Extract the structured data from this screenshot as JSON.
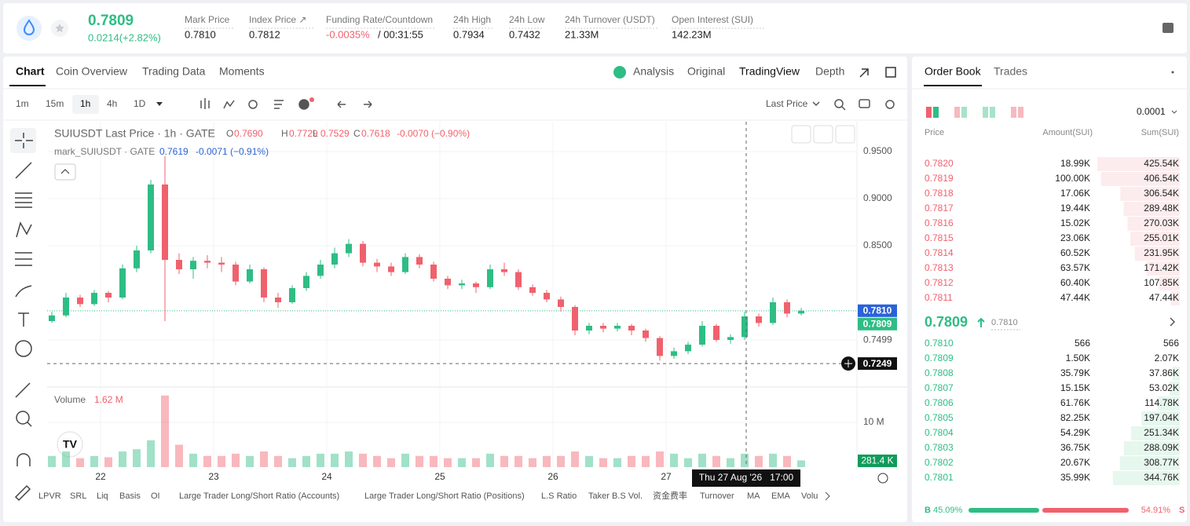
{
  "header": {
    "price": "0.7809",
    "change": "0.0214(+2.82%)",
    "stats": [
      {
        "label": "Mark Price",
        "value": "0.7810"
      },
      {
        "label": "Index Price ↗",
        "value": "0.7812"
      },
      {
        "label": "Funding Rate/Countdown",
        "value": "-0.0035%",
        "extra": "/ 00:31:55"
      },
      {
        "label": "24h High",
        "value": "0.7934"
      },
      {
        "label": "24h Low",
        "value": "0.7432"
      },
      {
        "label": "24h Turnover (USDT)",
        "value": "21.33M"
      },
      {
        "label": "Open Interest (SUI)",
        "value": "142.23M"
      }
    ]
  },
  "tabs": [
    "Chart",
    "Coin Overview",
    "Trading Data",
    "Moments"
  ],
  "views": [
    "Analysis",
    "Original",
    "TradingView",
    "Depth"
  ],
  "intervals": [
    "1m",
    "15m",
    "1h",
    "4h",
    "1D"
  ],
  "price_type": "Last Price",
  "chart": {
    "title": "SUIUSDT Last Price · 1h · GATE",
    "ohlc": [
      {
        "key": "O",
        "value": "0.7690"
      },
      {
        "key": "H",
        "value": "0.7729"
      },
      {
        "key": "L",
        "value": "0.7529"
      },
      {
        "key": "C",
        "value": "0.7618"
      }
    ],
    "change": "-0.0070 (−0.90%)",
    "mark_legend": {
      "name": "mark_SUIUSDT · GATE",
      "value": "0.7619",
      "change": "-0.0071 (−0.91%)"
    },
    "volume_legend": {
      "name": "Volume",
      "value": "1.62 M"
    },
    "ylim": [
      0.7008,
      0.9817
    ],
    "yticks": [
      {
        "value": 0.95,
        "label": "0.9500"
      },
      {
        "value": 0.9,
        "label": "0.9000"
      },
      {
        "value": 0.85,
        "label": "0.8500"
      },
      {
        "value": 0.7499,
        "label": "0.7499"
      }
    ],
    "price_tags": [
      {
        "value": 0.781,
        "label": "0.7810",
        "color": "#2b62d9"
      },
      {
        "value": 0.7809,
        "label": "0.7809",
        "color": "#2ebd85"
      },
      {
        "value": 0.7249,
        "label": "0.7249",
        "color": "#111111"
      }
    ],
    "up_color": "#2ebd85",
    "down_color": "#f0616d",
    "candles": [
      [
        0.77,
        0.78,
        0.768,
        0.776
      ],
      [
        0.776,
        0.8,
        0.774,
        0.795
      ],
      [
        0.795,
        0.798,
        0.785,
        0.788
      ],
      [
        0.788,
        0.803,
        0.786,
        0.8
      ],
      [
        0.8,
        0.802,
        0.79,
        0.795
      ],
      [
        0.795,
        0.83,
        0.793,
        0.826
      ],
      [
        0.826,
        0.85,
        0.822,
        0.845
      ],
      [
        0.845,
        0.92,
        0.842,
        0.915
      ],
      [
        0.915,
        0.945,
        0.77,
        0.835
      ],
      [
        0.835,
        0.842,
        0.82,
        0.825
      ],
      [
        0.825,
        0.838,
        0.815,
        0.834
      ],
      [
        0.834,
        0.84,
        0.826,
        0.832
      ],
      [
        0.832,
        0.838,
        0.822,
        0.83
      ],
      [
        0.83,
        0.833,
        0.808,
        0.812
      ],
      [
        0.812,
        0.83,
        0.81,
        0.825
      ],
      [
        0.825,
        0.827,
        0.79,
        0.795
      ],
      [
        0.795,
        0.8,
        0.784,
        0.79
      ],
      [
        0.79,
        0.808,
        0.788,
        0.805
      ],
      [
        0.805,
        0.822,
        0.802,
        0.818
      ],
      [
        0.818,
        0.835,
        0.815,
        0.83
      ],
      [
        0.83,
        0.848,
        0.826,
        0.842
      ],
      [
        0.842,
        0.857,
        0.838,
        0.852
      ],
      [
        0.852,
        0.855,
        0.828,
        0.832
      ],
      [
        0.832,
        0.836,
        0.822,
        0.828
      ],
      [
        0.828,
        0.832,
        0.818,
        0.822
      ],
      [
        0.822,
        0.842,
        0.82,
        0.838
      ],
      [
        0.838,
        0.841,
        0.826,
        0.83
      ],
      [
        0.83,
        0.833,
        0.812,
        0.815
      ],
      [
        0.815,
        0.818,
        0.804,
        0.808
      ],
      [
        0.808,
        0.814,
        0.804,
        0.81
      ],
      [
        0.81,
        0.812,
        0.8,
        0.806
      ],
      [
        0.806,
        0.83,
        0.804,
        0.825
      ],
      [
        0.825,
        0.832,
        0.818,
        0.822
      ],
      [
        0.822,
        0.825,
        0.803,
        0.806
      ],
      [
        0.806,
        0.809,
        0.797,
        0.8
      ],
      [
        0.8,
        0.803,
        0.79,
        0.793
      ],
      [
        0.793,
        0.796,
        0.78,
        0.785
      ],
      [
        0.785,
        0.787,
        0.755,
        0.76
      ],
      [
        0.76,
        0.768,
        0.756,
        0.765
      ],
      [
        0.765,
        0.768,
        0.758,
        0.762
      ],
      [
        0.762,
        0.768,
        0.759,
        0.765
      ],
      [
        0.765,
        0.767,
        0.755,
        0.76
      ],
      [
        0.76,
        0.762,
        0.748,
        0.752
      ],
      [
        0.752,
        0.754,
        0.728,
        0.733
      ],
      [
        0.733,
        0.742,
        0.73,
        0.738
      ],
      [
        0.738,
        0.748,
        0.735,
        0.745
      ],
      [
        0.745,
        0.77,
        0.743,
        0.765
      ],
      [
        0.765,
        0.767,
        0.748,
        0.75
      ],
      [
        0.75,
        0.756,
        0.746,
        0.753
      ],
      [
        0.753,
        0.78,
        0.75,
        0.775
      ],
      [
        0.775,
        0.778,
        0.764,
        0.768
      ],
      [
        0.768,
        0.795,
        0.766,
        0.79
      ],
      [
        0.79,
        0.793,
        0.774,
        0.778
      ],
      [
        0.778,
        0.784,
        0.776,
        0.781
      ]
    ],
    "volumes": [
      2.5,
      3.5,
      2,
      2.5,
      2.2,
      3.5,
      4,
      6,
      16,
      5,
      3,
      2.5,
      2.5,
      3,
      2.5,
      3.5,
      2.5,
      2,
      2.5,
      3,
      3,
      3.5,
      3,
      2.5,
      2,
      3,
      2.5,
      2.5,
      2,
      2,
      2,
      3,
      2.5,
      2.5,
      2,
      2.5,
      2.5,
      3.5,
      2.5,
      2,
      2,
      2.5,
      2.5,
      3.5,
      3,
      2,
      3,
      2.5,
      2,
      3,
      2.5,
      3,
      2.5,
      1.5
    ],
    "vlim": [
      0,
      16.67
    ],
    "vticks": [
      {
        "value": 10,
        "label": "10 M"
      }
    ],
    "volume_tag": {
      "value": 0.2814,
      "label": "281.4 K"
    },
    "x_labels": [
      "22",
      "23",
      "24",
      "25",
      "26",
      "27"
    ],
    "crosshair_label": "Thu 27 Aug '26   17:00",
    "indicators": [
      "LPVR",
      "SRL",
      "Liq",
      "Basis",
      "OI",
      "Large Trader Long/Short Ratio (Accounts)",
      "Large Trader Long/Short Ratio (Positions)",
      "L.S Ratio",
      "Taker B.S Vol.",
      "资金费率",
      "Turnover",
      "MA",
      "EMA",
      "Volu"
    ]
  },
  "order_book": {
    "tabs": [
      "Order Book",
      "Trades"
    ],
    "precision": "0.0001",
    "columns": [
      "Price",
      "Amount(SUI)",
      "Sum(SUI)"
    ],
    "asks": [
      [
        "0.7820",
        "18.99K",
        425.54,
        "425.54K"
      ],
      [
        "0.7819",
        "100.00K",
        406.54,
        "406.54K"
      ],
      [
        "0.7818",
        "17.06K",
        306.54,
        "306.54K"
      ],
      [
        "0.7817",
        "19.44K",
        289.48,
        "289.48K"
      ],
      [
        "0.7816",
        "15.02K",
        270.03,
        "270.03K"
      ],
      [
        "0.7815",
        "23.06K",
        255.01,
        "255.01K"
      ],
      [
        "0.7814",
        "60.52K",
        231.95,
        "231.95K"
      ],
      [
        "0.7813",
        "63.57K",
        171.42,
        "171.42K"
      ],
      [
        "0.7812",
        "60.40K",
        107.85,
        "107.85K"
      ],
      [
        "0.7811",
        "47.44K",
        47.44,
        "47.44K"
      ]
    ],
    "mid": {
      "price": "0.7809",
      "mark": "0.7810"
    },
    "bids": [
      [
        "0.7810",
        "566",
        0.566,
        "566"
      ],
      [
        "0.7809",
        "1.50K",
        2.07,
        "2.07K"
      ],
      [
        "0.7808",
        "35.79K",
        37.86,
        "37.86K"
      ],
      [
        "0.7807",
        "15.15K",
        53.02,
        "53.02K"
      ],
      [
        "0.7806",
        "61.76K",
        114.78,
        "114.78K"
      ],
      [
        "0.7805",
        "82.25K",
        197.04,
        "197.04K"
      ],
      [
        "0.7804",
        "54.29K",
        251.34,
        "251.34K"
      ],
      [
        "0.7803",
        "36.75K",
        288.09,
        "288.09K"
      ],
      [
        "0.7802",
        "20.67K",
        308.77,
        "308.77K"
      ],
      [
        "0.7801",
        "35.99K",
        344.76,
        "344.76K"
      ]
    ],
    "ratio": {
      "buy": {
        "letter": "B",
        "value": 45.09,
        "label": "45.09%"
      },
      "sell": {
        "letter": "S",
        "value": 54.91,
        "label": "54.91%"
      }
    }
  }
}
